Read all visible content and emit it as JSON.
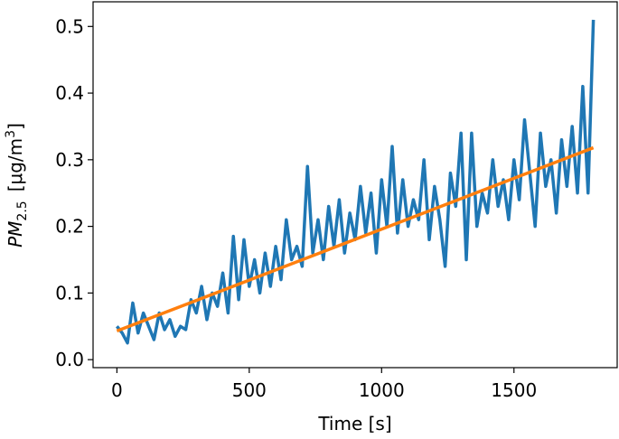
{
  "chart_data": {
    "type": "line",
    "x_label": "Time [s]",
    "y_label": {
      "base": "PM",
      "sub": "2.5",
      "unit": "[μg/m",
      "sup": "3",
      "close": "]"
    },
    "xlim": [
      -90,
      1890
    ],
    "ylim": [
      -0.012,
      0.537
    ],
    "xticks": [
      0,
      500,
      1000,
      1500
    ],
    "yticks": [
      {
        "value": 0,
        "label": "0.0"
      },
      0.1,
      0.2,
      0.3,
      0.4,
      0.5
    ],
    "series": [
      {
        "color": "#1f77b4",
        "x": [
          0,
          20,
          40,
          60,
          80,
          100,
          120,
          140,
          160,
          180,
          200,
          220,
          240,
          260,
          280,
          300,
          320,
          340,
          360,
          380,
          400,
          420,
          440,
          460,
          480,
          500,
          520,
          540,
          560,
          580,
          600,
          620,
          640,
          660,
          680,
          700,
          720,
          740,
          760,
          780,
          800,
          820,
          840,
          860,
          880,
          900,
          920,
          940,
          960,
          980,
          1000,
          1020,
          1040,
          1060,
          1080,
          1100,
          1120,
          1140,
          1160,
          1180,
          1200,
          1220,
          1240,
          1260,
          1280,
          1300,
          1320,
          1340,
          1360,
          1380,
          1400,
          1420,
          1440,
          1460,
          1480,
          1500,
          1520,
          1540,
          1560,
          1580,
          1600,
          1620,
          1640,
          1660,
          1680,
          1700,
          1720,
          1740,
          1760,
          1780,
          1800
        ],
        "values": [
          0.05,
          0.04,
          0.025,
          0.085,
          0.04,
          0.07,
          0.05,
          0.03,
          0.07,
          0.045,
          0.06,
          0.035,
          0.05,
          0.045,
          0.09,
          0.07,
          0.11,
          0.06,
          0.1,
          0.08,
          0.13,
          0.07,
          0.185,
          0.09,
          0.18,
          0.11,
          0.15,
          0.1,
          0.16,
          0.11,
          0.17,
          0.12,
          0.21,
          0.15,
          0.17,
          0.14,
          0.29,
          0.16,
          0.21,
          0.15,
          0.23,
          0.17,
          0.24,
          0.16,
          0.22,
          0.18,
          0.26,
          0.19,
          0.25,
          0.16,
          0.27,
          0.2,
          0.32,
          0.19,
          0.27,
          0.2,
          0.24,
          0.21,
          0.3,
          0.18,
          0.26,
          0.21,
          0.14,
          0.28,
          0.23,
          0.34,
          0.15,
          0.34,
          0.2,
          0.25,
          0.22,
          0.3,
          0.23,
          0.27,
          0.21,
          0.3,
          0.24,
          0.36,
          0.28,
          0.2,
          0.34,
          0.26,
          0.3,
          0.22,
          0.33,
          0.26,
          0.35,
          0.25,
          0.41,
          0.25,
          0.51
        ]
      },
      {
        "color": "#ff7f0e",
        "x": [
          0,
          1800
        ],
        "values": [
          0.043,
          0.318
        ]
      }
    ]
  }
}
